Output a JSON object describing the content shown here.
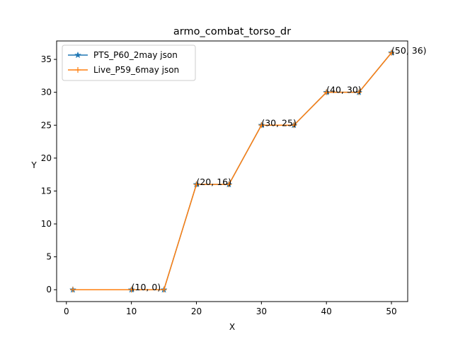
{
  "chart_data": {
    "type": "line",
    "title": "armo_combat_torso_dr",
    "xlabel": "X",
    "ylabel": "Y",
    "xlim": [
      -1.5,
      52.5
    ],
    "ylim": [
      -1.8,
      37.8
    ],
    "xticks": [
      0,
      10,
      20,
      30,
      40,
      50
    ],
    "yticks": [
      0,
      5,
      10,
      15,
      20,
      25,
      30,
      35
    ],
    "x": [
      1,
      10,
      15,
      20,
      25,
      30,
      35,
      40,
      45,
      50
    ],
    "series": [
      {
        "name": "PTS_P60_2may json",
        "color": "#1f77b4",
        "marker": "star",
        "values": [
          0,
          0,
          0,
          16,
          16,
          25,
          25,
          30,
          30,
          36
        ]
      },
      {
        "name": "Live_P59_6may json",
        "color": "#ff7f0e",
        "marker": "plus",
        "values": [
          0,
          0,
          0,
          16,
          16,
          25,
          25,
          30,
          30,
          36
        ]
      }
    ],
    "annotations": [
      {
        "x": 10,
        "y": 0,
        "text": "(10, 0)"
      },
      {
        "x": 20,
        "y": 16,
        "text": "(20, 16)"
      },
      {
        "x": 30,
        "y": 25,
        "text": "(30, 25)"
      },
      {
        "x": 40,
        "y": 30,
        "text": "(40, 30)"
      },
      {
        "x": 50,
        "y": 36,
        "text": "(50, 36)"
      }
    ],
    "legend": "top-left",
    "grid": false
  }
}
